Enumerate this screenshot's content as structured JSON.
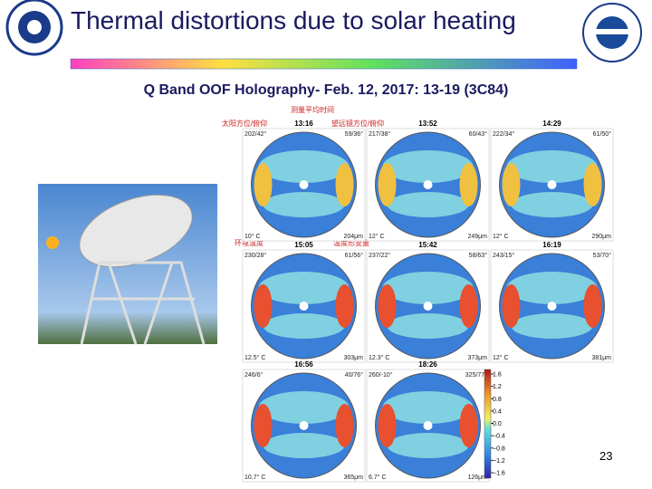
{
  "header": {
    "title": "Thermal distortions due to solar heating",
    "subtitle": "Q Band OOF Holography- Feb. 12, 2017: 13-19  (3C84)"
  },
  "annotations": {
    "mean_time": "测量平均时间",
    "sun": "太阳方位/俯仰",
    "telescope": "望远镜方位/俯仰",
    "ambient": "环境温度",
    "deformation": "温度形变量"
  },
  "panels": [
    {
      "time": "13:16",
      "sun": "202/42°",
      "telescope": "59/36°",
      "temperature": "10° C",
      "rms": "204μm"
    },
    {
      "time": "13:52",
      "sun": "217/38°",
      "telescope": "60/43°",
      "temperature": "12° C",
      "rms": "249μm"
    },
    {
      "time": "14:29",
      "sun": "222/34°",
      "telescope": "61/50°",
      "temperature": "12° C",
      "rms": "290μm"
    },
    {
      "time": "15:05",
      "sun": "230/28°",
      "telescope": "61/56°",
      "temperature": "12.5° C",
      "rms": "303μm"
    },
    {
      "time": "15:42",
      "sun": "237/22°",
      "telescope": "58/63°",
      "temperature": "12.3° C",
      "rms": "373μm"
    },
    {
      "time": "16:19",
      "sun": "243/15°",
      "telescope": "53/70°",
      "temperature": "12° C",
      "rms": "381μm"
    },
    {
      "time": "16:56",
      "sun": "246/6°",
      "telescope": "40/76°",
      "temperature": "10.7° C",
      "rms": "365μm"
    },
    {
      "time": "18:26",
      "sun": "260/-10°",
      "telescope": "325/77°",
      "temperature": "6.7° C",
      "rms": "126μm"
    }
  ],
  "colorbar": {
    "ticks": [
      1.6,
      1.2,
      0.8,
      0.4,
      {
        "value": 0,
        "label": "0.0"
      },
      {
        "value": -0.4,
        "label": "−0.4"
      },
      {
        "value": -0.8,
        "label": "−0.8"
      },
      {
        "value": -1.2,
        "label": "−1.2"
      },
      {
        "value": -1.6,
        "label": "−1.6"
      }
    ]
  },
  "footer": {
    "page": "23"
  }
}
